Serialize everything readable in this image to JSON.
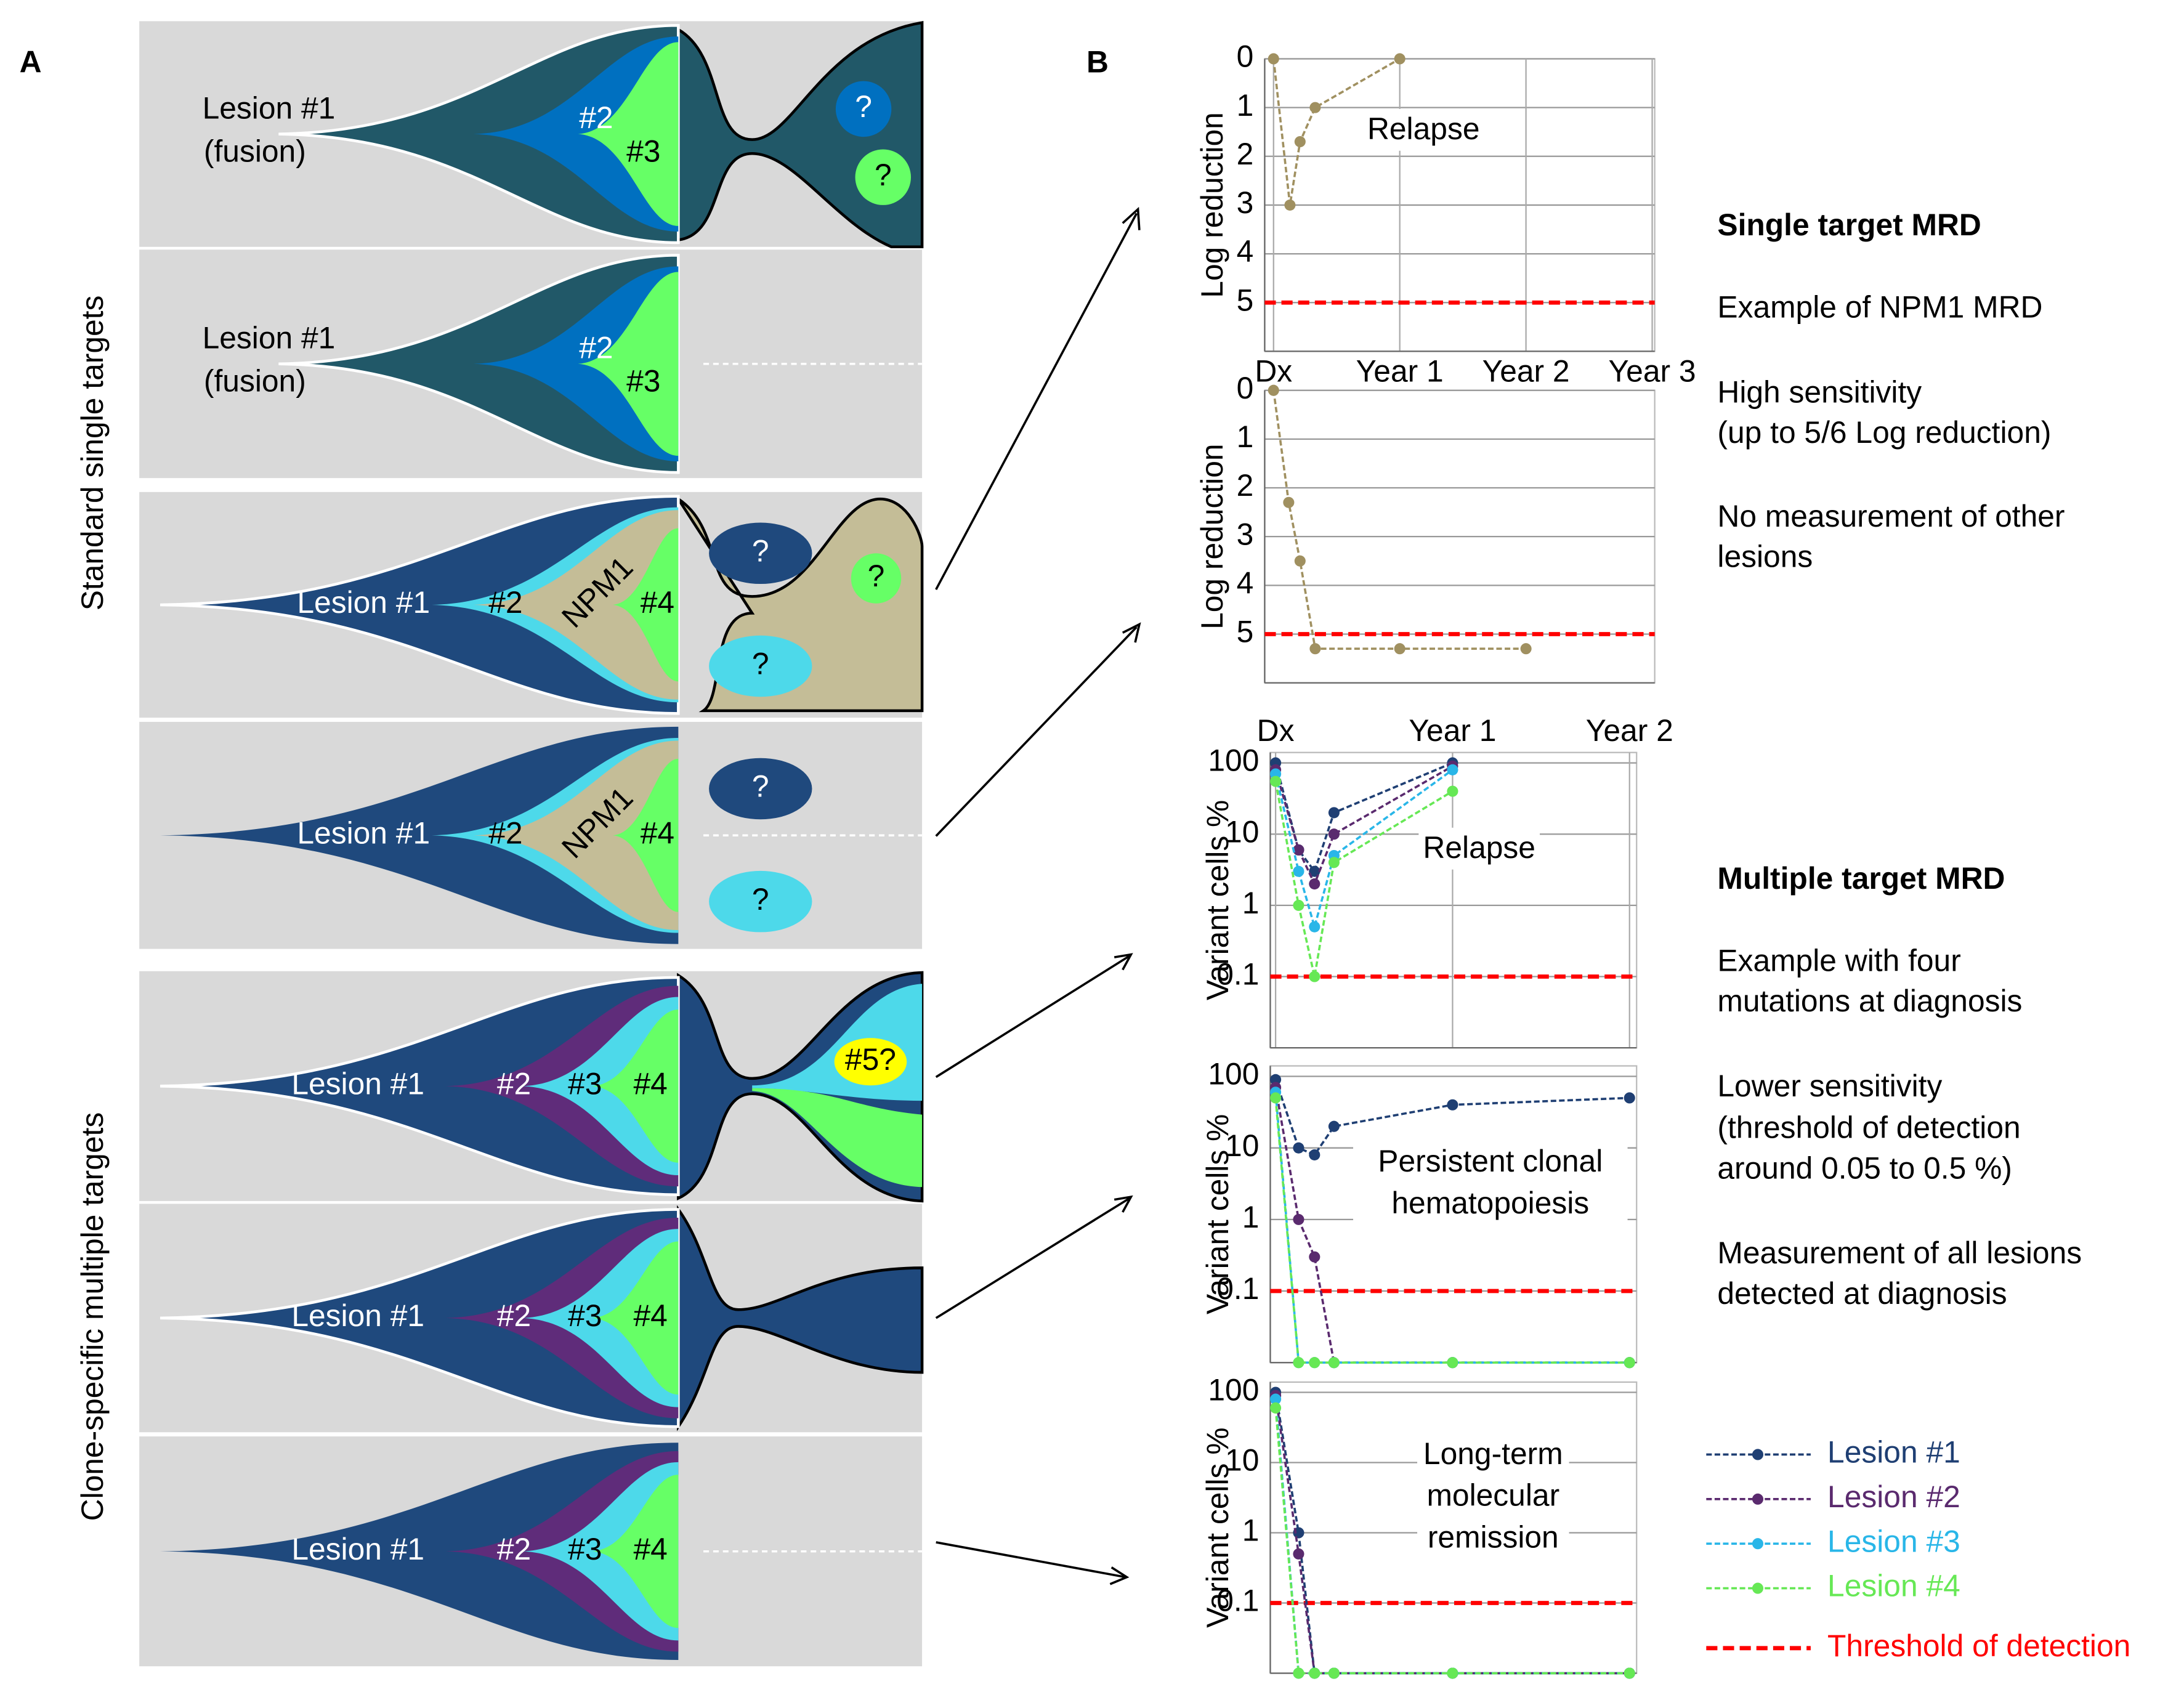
{
  "panel_a": {
    "label": "A",
    "group_labels": [
      "Standard single targets",
      "Clone-specific multiple targets"
    ],
    "panels": [
      {
        "labels": [
          "Lesion #1",
          "(fusion)",
          "#2",
          "#3",
          "?",
          "?"
        ]
      },
      {
        "labels": [
          "Lesion #1",
          "(fusion)",
          "#2",
          "#3"
        ]
      },
      {
        "labels": [
          "Lesion #1",
          "#2",
          "NPM1",
          "#4",
          "?",
          "?",
          "?"
        ]
      },
      {
        "labels": [
          "Lesion #1",
          "#2",
          "NPM1",
          "#4",
          "?",
          "?"
        ]
      },
      {
        "labels": [
          "Lesion #1",
          "#2",
          "#3",
          "#4",
          "#5?"
        ]
      },
      {
        "labels": [
          "Lesion #1",
          "#2",
          "#3",
          "#4"
        ]
      },
      {
        "labels": [
          "Lesion #1",
          "#2",
          "#3",
          "#4"
        ]
      }
    ]
  },
  "panel_b": {
    "label": "B",
    "notes": [
      "Single target MRD",
      "Example of NPM1  MRD",
      "High sensitivity",
      "(up to 5/6 Log reduction)",
      "No measurement of other",
      "lesions",
      "Multiple target MRD",
      "Example with four",
      "mutations at diagnosis",
      "Lower sensitivity",
      "(threshold of detection",
      "around 0.05 to 0.5 %)",
      "Measurement of all lesions",
      "detected at diagnosis"
    ],
    "legend": {
      "series": [
        "Lesion #1",
        "Lesion #2",
        "Lesion #3",
        "Lesion #4"
      ],
      "threshold": "Threshold of detection"
    }
  },
  "chart_data": [
    {
      "type": "line",
      "ylabel": "Log reduction",
      "ylim": [
        6,
        0
      ],
      "yticks": [
        0,
        1,
        2,
        3,
        4,
        5
      ],
      "xlim": [
        -0.07,
        3.02
      ],
      "xticks": [
        {
          "value": 0,
          "label": "Dx"
        },
        {
          "value": 1,
          "label": "Year 1"
        },
        {
          "value": 2,
          "label": "Year 2"
        },
        {
          "value": 3,
          "label": "Year 3"
        }
      ],
      "x": [
        0,
        0.13,
        0.21,
        0.33,
        1
      ],
      "series": [
        {
          "color": "#a09060",
          "values": [
            0,
            3,
            1.7,
            1,
            0
          ]
        }
      ],
      "threshold": 5,
      "threshold_color": "#ff0000",
      "annotation": [
        "Relapse"
      ]
    },
    {
      "type": "line",
      "ylabel": "Log reduction",
      "ylim": [
        6,
        0
      ],
      "yticks": [
        0,
        1,
        2,
        3,
        4,
        5
      ],
      "xlim": [
        -0.07,
        3.02
      ],
      "x": [
        0,
        0.12,
        0.21,
        0.33,
        1,
        2
      ],
      "series": [
        {
          "color": "#a09060",
          "values": [
            0,
            2.3,
            3.5,
            5.3,
            5.3,
            5.3
          ]
        }
      ],
      "threshold": 5,
      "threshold_color": "#ff0000"
    },
    {
      "type": "line",
      "ylabel": "Variant cells %",
      "log_scale": true,
      "ylim": [
        0.01,
        140
      ],
      "yticks": [
        100,
        10,
        1,
        0.1
      ],
      "xlim": [
        -0.03,
        2.04
      ],
      "xticks": [
        {
          "value": 0,
          "label": "Dx"
        },
        {
          "value": 1,
          "label": "Year 1"
        },
        {
          "value": 2,
          "label": "Year 2"
        }
      ],
      "x": [
        0,
        0.13,
        0.22,
        0.33,
        1
      ],
      "series": [
        {
          "color": "#1f3f73",
          "values": [
            100,
            6,
            3,
            20,
            100
          ]
        },
        {
          "color": "#5a2a6e",
          "values": [
            80,
            6,
            2,
            10,
            90
          ]
        },
        {
          "color": "#29b6e8",
          "values": [
            70,
            3,
            0.5,
            5,
            80
          ]
        },
        {
          "color": "#66e855",
          "values": [
            55,
            1,
            0.1,
            4,
            40
          ]
        }
      ],
      "threshold": 0.1,
      "threshold_color": "#ff0000",
      "annotation": [
        "Relapse"
      ]
    },
    {
      "type": "line",
      "ylabel": "Variant cells %",
      "log_scale": true,
      "ylim": [
        0.01,
        140
      ],
      "yticks": [
        100,
        10,
        1,
        0.1
      ],
      "xlim": [
        -0.03,
        2.04
      ],
      "x": [
        0,
        0.13,
        0.22,
        0.33,
        1,
        2
      ],
      "series": [
        {
          "color": "#1f3f73",
          "values": [
            90,
            10,
            8,
            20,
            40,
            50
          ]
        },
        {
          "color": "#5a2a6e",
          "values": [
            70,
            1,
            0.3,
            0.01,
            0.01,
            0.01
          ]
        },
        {
          "color": "#29b6e8",
          "values": [
            60,
            0.01,
            0.01,
            0.01,
            0.01,
            0.01
          ]
        },
        {
          "color": "#66e855",
          "values": [
            50,
            0.01,
            0.01,
            0.01,
            0.01,
            0.01
          ]
        }
      ],
      "threshold": 0.1,
      "threshold_color": "#ff0000",
      "annotation": [
        "Persistent clonal",
        "hematopoiesis"
      ]
    },
    {
      "type": "line",
      "ylabel": "Variant cells %",
      "log_scale": true,
      "ylim": [
        0.01,
        140
      ],
      "yticks": [
        100,
        10,
        1,
        0.1
      ],
      "xlim": [
        -0.03,
        2.04
      ],
      "x": [
        0,
        0.13,
        0.22,
        0.33,
        1,
        2
      ],
      "series": [
        {
          "color": "#1f3f73",
          "values": [
            100,
            1,
            0.01,
            0.01,
            0.01,
            0.01
          ]
        },
        {
          "color": "#5a2a6e",
          "values": [
            90,
            0.5,
            0.01,
            0.01,
            0.01,
            0.01
          ]
        },
        {
          "color": "#29b6e8",
          "values": [
            80,
            0.01,
            0.01,
            0.01,
            0.01,
            0.01
          ]
        },
        {
          "color": "#66e855",
          "values": [
            60,
            0.01,
            0.01,
            0.01,
            0.01,
            0.01
          ]
        }
      ],
      "threshold": 0.1,
      "threshold_color": "#ff0000",
      "annotation": [
        "Long-term",
        "molecular",
        "remission"
      ]
    }
  ]
}
